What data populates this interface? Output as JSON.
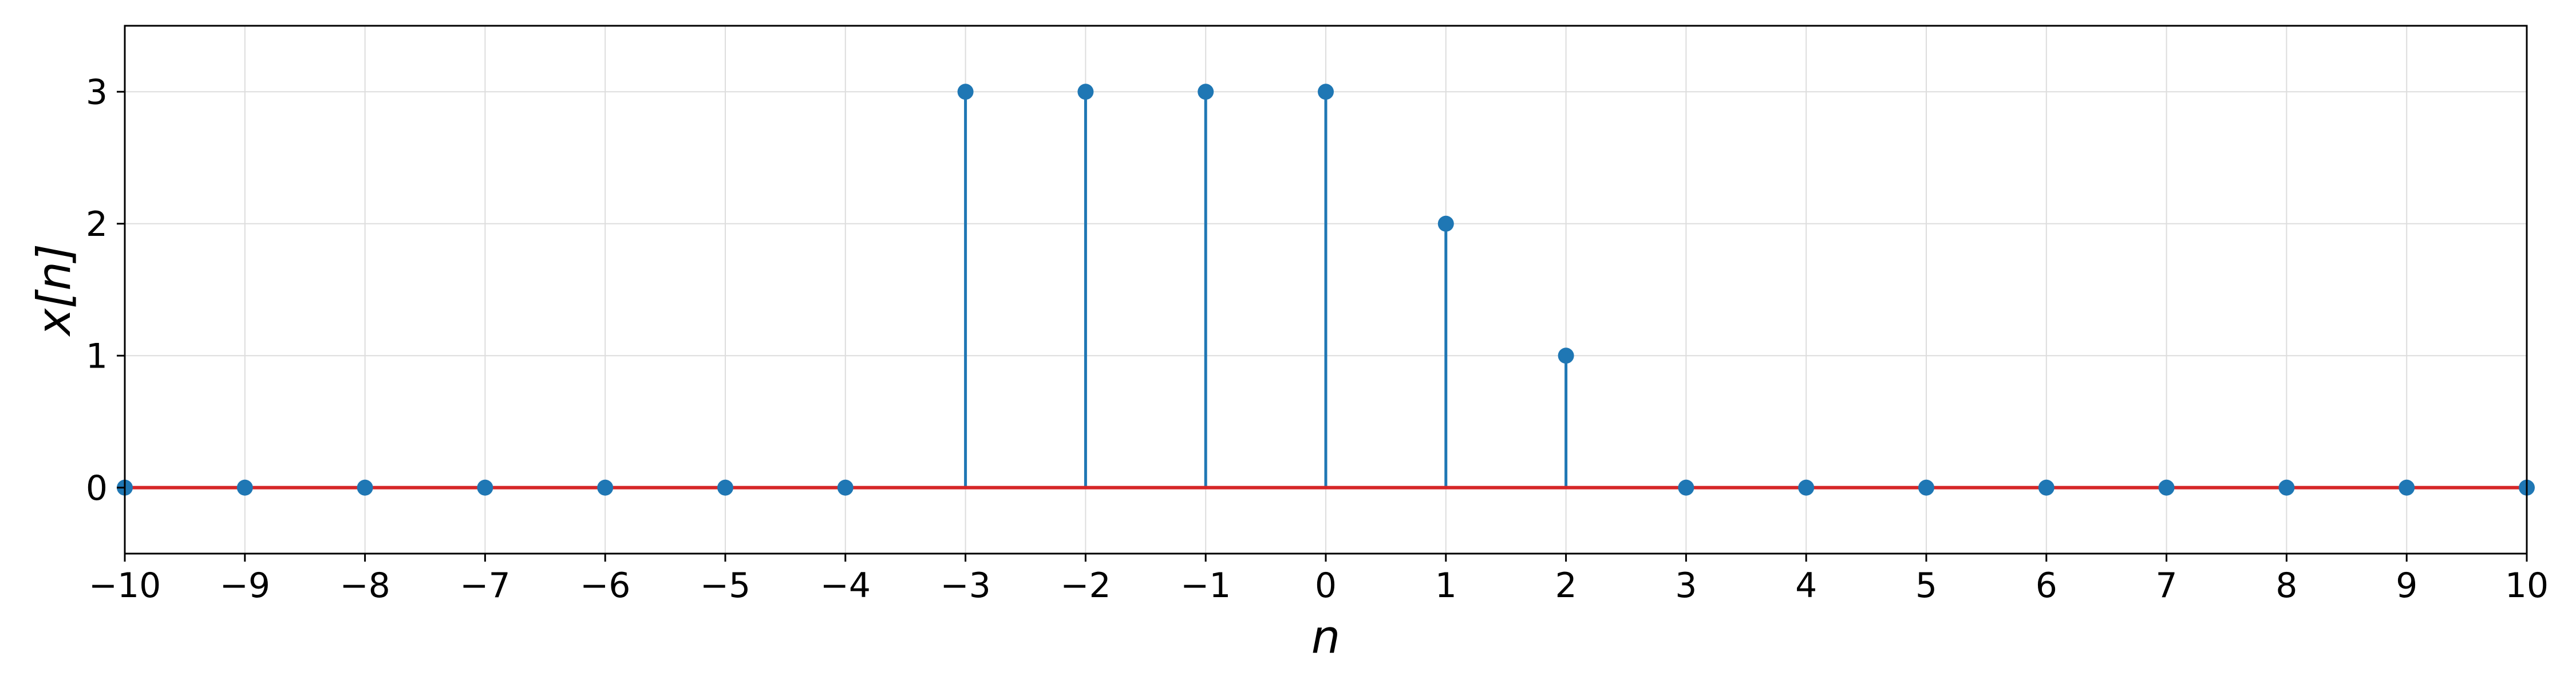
{
  "chart_data": {
    "type": "stem",
    "title": "",
    "xlabel": "n",
    "ylabel": "x[n]",
    "xlim": [
      -10,
      10
    ],
    "ylim": [
      -0.5,
      3.5
    ],
    "x_ticks": [
      -10,
      -9,
      -8,
      -7,
      -6,
      -5,
      -4,
      -3,
      -2,
      -1,
      0,
      1,
      2,
      3,
      4,
      5,
      6,
      7,
      8,
      9,
      10
    ],
    "x_tick_labels": [
      "−10",
      "−9",
      "−8",
      "−7",
      "−6",
      "−5",
      "−4",
      "−3",
      "−2",
      "−1",
      "0",
      "1",
      "2",
      "3",
      "4",
      "5",
      "6",
      "7",
      "8",
      "9",
      "10"
    ],
    "y_ticks": [
      0,
      1,
      2,
      3
    ],
    "y_tick_labels": [
      "0",
      "1",
      "2",
      "3"
    ],
    "grid": true,
    "x": [
      -10,
      -9,
      -8,
      -7,
      -6,
      -5,
      -4,
      -3,
      -2,
      -1,
      0,
      1,
      2,
      3,
      4,
      5,
      6,
      7,
      8,
      9,
      10
    ],
    "y": [
      0,
      0,
      0,
      0,
      0,
      0,
      0,
      3,
      3,
      3,
      3,
      2,
      1,
      0,
      0,
      0,
      0,
      0,
      0,
      0,
      0
    ],
    "colors": {
      "stem": "#1f77b4",
      "marker": "#1f77b4",
      "baseline": "#d62728",
      "grid": "#dddddd",
      "frame": "#000000"
    }
  }
}
